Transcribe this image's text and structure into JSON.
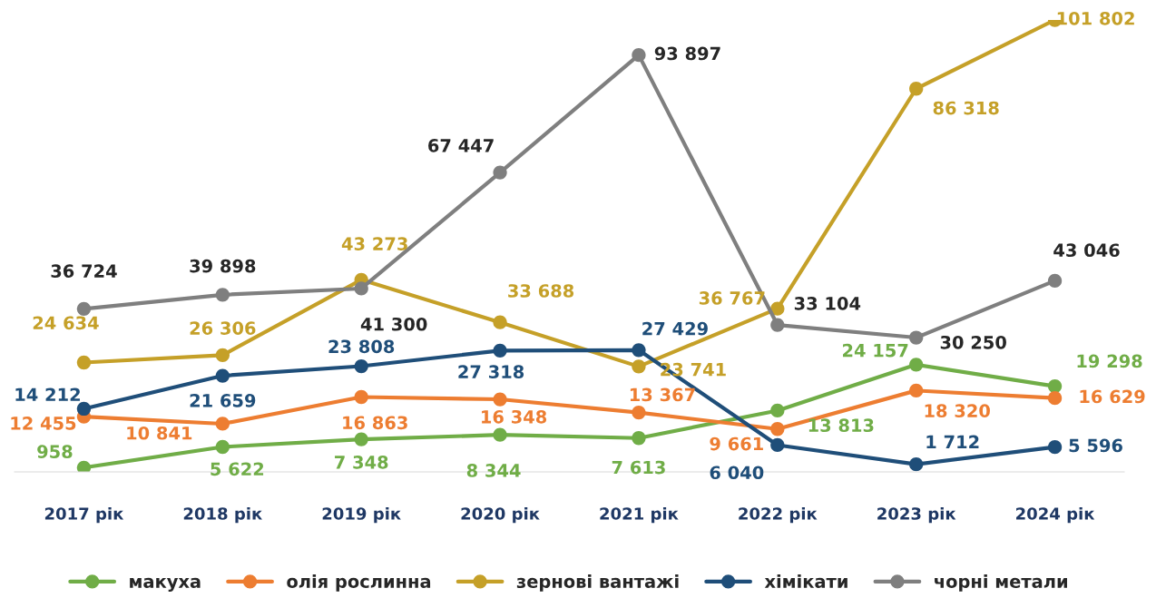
{
  "chart_data": {
    "type": "line",
    "categories": [
      "2017 рік",
      "2018 рік",
      "2019 рік",
      "2020 рік",
      "2021 рік",
      "2022 рік",
      "2023 рік",
      "2024 рік"
    ],
    "series": [
      {
        "name": "макуха",
        "color": "#70ad47",
        "values": [
          958,
          5622,
          7348,
          8344,
          7613,
          13813,
          24157,
          19298
        ],
        "value_labels": [
          "958",
          "5 622",
          "7 348",
          "8 344",
          "7 613",
          "13 813",
          "24 157",
          "19 298"
        ]
      },
      {
        "name": "олія рослинна",
        "color": "#ed7d31",
        "values": [
          12455,
          10841,
          16863,
          16348,
          13367,
          9661,
          18320,
          16629
        ],
        "value_labels": [
          "12 455",
          "10 841",
          "16 863",
          "16 348",
          "13 367",
          "9 661",
          "18 320",
          "16 629"
        ]
      },
      {
        "name": "зернові вантажі",
        "color": "#c5a028",
        "values": [
          24634,
          26306,
          43273,
          33688,
          23741,
          36767,
          86318,
          101802
        ],
        "value_labels": [
          "24 634",
          "26 306",
          "43 273",
          "33 688",
          "23 741",
          "36 767",
          "86 318",
          "101 802"
        ]
      },
      {
        "name": "хімікати",
        "color": "#1f4e79",
        "values": [
          14212,
          21659,
          23808,
          27318,
          27429,
          6040,
          1712,
          5596
        ],
        "value_labels": [
          "14 212",
          "21 659",
          "23 808",
          "27 318",
          "27 429",
          "6 040",
          "1 712",
          "5 596"
        ]
      },
      {
        "name": "чорні метали",
        "color": "#7f7f7f",
        "values": [
          36724,
          39898,
          41300,
          67447,
          93897,
          33104,
          30250,
          43046
        ],
        "value_labels": [
          "36 724",
          "39 898",
          "41 300",
          "67 447",
          "93 897",
          "33 104",
          "30 250",
          "43 046"
        ]
      }
    ],
    "marker": "circle",
    "line_style": "solid",
    "legend": "bottom",
    "grid": false
  }
}
